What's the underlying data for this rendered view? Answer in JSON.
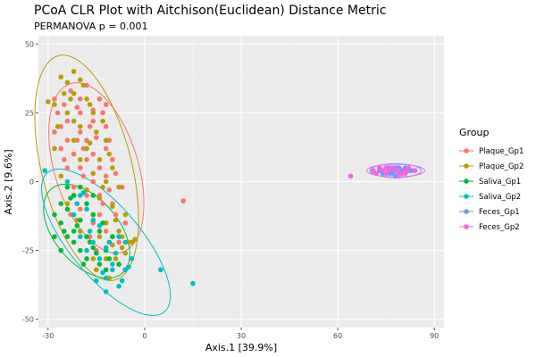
{
  "chart_data": {
    "type": "scatter",
    "title": "PCoA CLR Plot with Aitchison(Euclidean) Distance Metric",
    "subtitle": "PERMANOVA p = 0.001",
    "xlabel": "Axis.1   [39.9%]",
    "ylabel": "Axis.2   [9.6%]",
    "xlim": [
      -33,
      93
    ],
    "ylim": [
      -53,
      53
    ],
    "x_ticks": [
      -30,
      0,
      30,
      60,
      90
    ],
    "y_ticks": [
      -50,
      -25,
      0,
      25,
      50
    ],
    "x_tick_labels": [
      "-30",
      "0",
      "30",
      "60",
      "90"
    ],
    "y_tick_labels": [
      "-50",
      "-25",
      "0",
      "25",
      "50"
    ],
    "grid": true,
    "legend": {
      "title": "Group",
      "placement": "right"
    },
    "series": [
      {
        "name": "Plaque_Gp1",
        "color": "#F8766D",
        "ellipse": {
          "cx": -15,
          "cy": 5,
          "rx": 13,
          "ry": 32,
          "angle": -17
        },
        "points": [
          [
            -28,
            30
          ],
          [
            -25,
            28
          ],
          [
            -22,
            32
          ],
          [
            -20,
            25
          ],
          [
            -18,
            35
          ],
          [
            -16,
            22
          ],
          [
            -14,
            30
          ],
          [
            -12,
            20
          ],
          [
            -24,
            15
          ],
          [
            -22,
            10
          ],
          [
            -20,
            5
          ],
          [
            -18,
            15
          ],
          [
            -16,
            10
          ],
          [
            -14,
            5
          ],
          [
            -12,
            12
          ],
          [
            -10,
            8
          ],
          [
            -26,
            20
          ],
          [
            -24,
            22
          ],
          [
            -20,
            18
          ],
          [
            -18,
            8
          ],
          [
            -16,
            0
          ],
          [
            -14,
            -5
          ],
          [
            -12,
            2
          ],
          [
            -10,
            -8
          ],
          [
            -22,
            -2
          ],
          [
            -20,
            -10
          ],
          [
            -18,
            -5
          ],
          [
            -16,
            -15
          ],
          [
            -14,
            -12
          ],
          [
            -12,
            -18
          ],
          [
            -10,
            -20
          ],
          [
            -8,
            -22
          ],
          [
            -6,
            -15
          ],
          [
            -24,
            5
          ],
          [
            -22,
            -5
          ],
          [
            -26,
            12
          ],
          [
            -28,
            18
          ],
          [
            -21,
            27
          ],
          [
            -19,
            12
          ],
          [
            -17,
            20
          ],
          [
            -15,
            16
          ],
          [
            -13,
            25
          ],
          [
            -11,
            15
          ],
          [
            -9,
            3
          ],
          [
            -7,
            -2
          ],
          [
            -23,
            33
          ],
          [
            -27,
            25
          ],
          [
            -25,
            8
          ],
          [
            -17,
            -20
          ],
          [
            -15,
            -25
          ],
          [
            -13,
            -8
          ],
          [
            -11,
            -3
          ],
          [
            -19,
            2
          ],
          [
            -21,
            15
          ],
          [
            12,
            -7
          ],
          [
            -23,
            -12
          ],
          [
            -9,
            -12
          ],
          [
            -20,
            30
          ],
          [
            -16,
            26
          ],
          [
            -12,
            28
          ]
        ]
      },
      {
        "name": "Plaque_Gp2",
        "color": "#B79F00",
        "ellipse": {
          "cx": -18,
          "cy": 5,
          "rx": 14,
          "ry": 42,
          "angle": -14
        },
        "points": [
          [
            -26,
            38
          ],
          [
            -24,
            36
          ],
          [
            -22,
            40
          ],
          [
            -20,
            37
          ],
          [
            -28,
            28
          ],
          [
            -30,
            29
          ],
          [
            -22,
            32
          ],
          [
            -18,
            30
          ],
          [
            -16,
            25
          ],
          [
            -24,
            25
          ],
          [
            -20,
            20
          ],
          [
            -15,
            18
          ],
          [
            -12,
            15
          ],
          [
            -22,
            15
          ],
          [
            -18,
            12
          ],
          [
            -14,
            8
          ],
          [
            -10,
            5
          ],
          [
            -20,
            8
          ],
          [
            -16,
            3
          ],
          [
            -12,
            0
          ],
          [
            -8,
            -2
          ],
          [
            -18,
            -3
          ],
          [
            -14,
            -6
          ],
          [
            -10,
            -9
          ],
          [
            -6,
            -12
          ],
          [
            -16,
            -12
          ],
          [
            -12,
            -15
          ],
          [
            -8,
            -18
          ],
          [
            -4,
            -22
          ],
          [
            -14,
            -20
          ],
          [
            -10,
            -23
          ],
          [
            -6,
            -26
          ],
          [
            -12,
            -28
          ],
          [
            -8,
            -30
          ],
          [
            -16,
            -28
          ],
          [
            -20,
            -18
          ],
          [
            -24,
            -8
          ],
          [
            -26,
            2
          ],
          [
            -28,
            12
          ],
          [
            -22,
            22
          ],
          [
            -19,
            35
          ],
          [
            -17,
            28
          ],
          [
            -13,
            22
          ],
          [
            -11,
            10
          ],
          [
            -9,
            -14
          ],
          [
            -7,
            -20
          ],
          [
            -5,
            -22
          ],
          [
            -21,
            -14
          ],
          [
            -15,
            -32
          ],
          [
            -11,
            -35
          ],
          [
            -23,
            30
          ],
          [
            -25,
            32
          ],
          [
            -27,
            20
          ],
          [
            -17,
            14
          ],
          [
            -13,
            -2
          ],
          [
            -9,
            -28
          ],
          [
            -7,
            -24
          ],
          [
            -3,
            -21
          ]
        ]
      },
      {
        "name": "Saliva_Gp1",
        "color": "#00BA38",
        "ellipse": {
          "cx": -18,
          "cy": -18,
          "rx": 10,
          "ry": 20,
          "angle": -40
        },
        "points": [
          [
            -28,
            -12
          ],
          [
            -26,
            -15
          ],
          [
            -24,
            -10
          ],
          [
            -22,
            -18
          ],
          [
            -20,
            -14
          ],
          [
            -18,
            -20
          ],
          [
            -16,
            -12
          ],
          [
            -14,
            -18
          ],
          [
            -12,
            -25
          ],
          [
            -10,
            -20
          ],
          [
            -8,
            -30
          ],
          [
            -24,
            -20
          ],
          [
            -22,
            -22
          ],
          [
            -20,
            -25
          ],
          [
            -18,
            -28
          ],
          [
            -16,
            -24
          ],
          [
            -14,
            -30
          ],
          [
            -12,
            -32
          ],
          [
            -26,
            -8
          ],
          [
            -22,
            -5
          ],
          [
            -18,
            -8
          ],
          [
            -20,
            -2
          ],
          [
            -24,
            -2
          ],
          [
            -16,
            -5
          ],
          [
            -28,
            -20
          ],
          [
            -26,
            -25
          ],
          [
            -21,
            -16
          ],
          [
            -19,
            -30
          ],
          [
            -17,
            -22
          ],
          [
            -15,
            -26
          ],
          [
            -13,
            -15
          ],
          [
            -11,
            -28
          ],
          [
            -23,
            -6
          ],
          [
            -25,
            -18
          ]
        ]
      },
      {
        "name": "Saliva_Gp2",
        "color": "#00BFC4",
        "ellipse": {
          "cx": -12,
          "cy": -22,
          "rx": 11,
          "ry": 33,
          "angle": -40
        },
        "points": [
          [
            -31,
            4
          ],
          [
            -24,
            0
          ],
          [
            -20,
            -5
          ],
          [
            -18,
            -10
          ],
          [
            -16,
            -22
          ],
          [
            -14,
            -28
          ],
          [
            -12,
            -24
          ],
          [
            -10,
            -30
          ],
          [
            -8,
            -38
          ],
          [
            -6,
            -32
          ],
          [
            -4,
            -28
          ],
          [
            -12,
            -35
          ],
          [
            -15,
            -36
          ],
          [
            -10,
            -32
          ],
          [
            -18,
            -25
          ],
          [
            -20,
            -20
          ],
          [
            -22,
            -12
          ],
          [
            -14,
            -16
          ],
          [
            -8,
            -20
          ],
          [
            -6,
            -22
          ],
          [
            5,
            -32
          ],
          [
            15,
            -37
          ],
          [
            -12,
            -40
          ],
          [
            -16,
            -14
          ],
          [
            -11,
            -22
          ],
          [
            -13,
            -33
          ],
          [
            -9,
            -26
          ],
          [
            -7,
            -36
          ],
          [
            -5,
            -31
          ],
          [
            -21,
            -8
          ],
          [
            -19,
            -4
          ],
          [
            -17,
            -18
          ]
        ]
      },
      {
        "name": "Feces_Gp1",
        "color": "#619CFF",
        "ellipse": {
          "cx": 78,
          "cy": 4,
          "rx": 8,
          "ry": 2.5,
          "angle": 0
        },
        "points": [
          [
            73,
            4
          ],
          [
            75,
            5
          ],
          [
            76,
            3
          ],
          [
            77,
            4
          ],
          [
            78,
            5
          ],
          [
            79,
            3
          ],
          [
            80,
            4
          ],
          [
            81,
            5
          ],
          [
            74,
            3
          ],
          [
            82,
            4
          ],
          [
            76,
            5
          ],
          [
            78,
            2
          ],
          [
            80,
            3
          ],
          [
            77,
            3
          ],
          [
            79,
            5
          ],
          [
            83,
            4
          ]
        ]
      },
      {
        "name": "Feces_Gp2",
        "color": "#F564E3",
        "ellipse": {
          "cx": 78,
          "cy": 4,
          "rx": 9,
          "ry": 2.3,
          "angle": 0
        },
        "points": [
          [
            64,
            2
          ],
          [
            71,
            4
          ],
          [
            72,
            3
          ],
          [
            73,
            5
          ],
          [
            74,
            4
          ],
          [
            75,
            3
          ],
          [
            76,
            4
          ],
          [
            77,
            5
          ],
          [
            78,
            4
          ],
          [
            79,
            4
          ],
          [
            80,
            3
          ],
          [
            81,
            4
          ],
          [
            82,
            5
          ],
          [
            84,
            4
          ],
          [
            75,
            5
          ],
          [
            79,
            2
          ],
          [
            81,
            3
          ]
        ]
      }
    ]
  }
}
